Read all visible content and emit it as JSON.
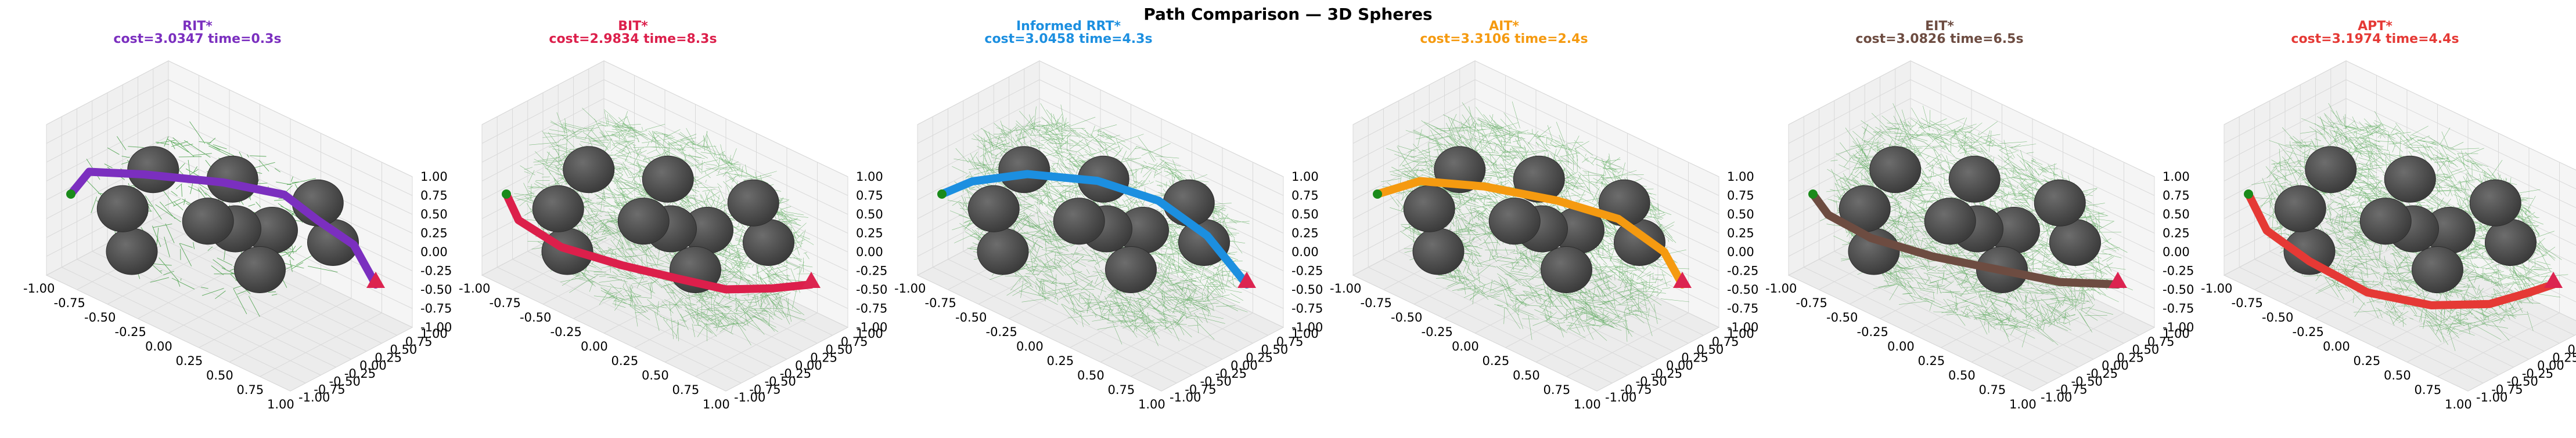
{
  "figure": {
    "suptitle": "Path Comparison — 3D Spheres"
  },
  "colors": {
    "tree": "#1a8a1a",
    "sphere_dark": "#3c3c3c",
    "sphere_light": "#6d6d6d",
    "goal": "#dc2450",
    "pane_fill": "#f2f2f2",
    "grid": "#d9d9d9"
  },
  "chart_data": [
    {
      "type": "line",
      "title": "RIT*",
      "subtitle": "cost=3.0347  time=0.3s",
      "color": "#7b2fbf",
      "cost": 3.0347,
      "time_s": 0.3,
      "tree_density": "sparse",
      "axis_ticks": [
        "-1.00",
        "-0.75",
        "-0.50",
        "-0.25",
        "0.00",
        "0.25",
        "0.50",
        "0.75",
        "1.00"
      ],
      "xlim": [
        -1,
        1
      ],
      "ylim": [
        -1,
        1
      ],
      "zlim": [
        -1,
        1
      ],
      "path_xyz": [
        [
          -0.85,
          -0.9,
          0.15
        ],
        [
          -0.8,
          -0.7,
          0.4
        ],
        [
          -0.45,
          -0.5,
          0.55
        ],
        [
          0.0,
          -0.1,
          0.62
        ],
        [
          0.35,
          0.2,
          0.6
        ],
        [
          0.55,
          0.35,
          0.35
        ],
        [
          0.72,
          0.6,
          0.05
        ],
        [
          0.8,
          0.8,
          -0.5
        ]
      ]
    },
    {
      "type": "line",
      "title": "BIT*",
      "subtitle": "cost=2.9834  time=8.3s",
      "color": "#dc1f4b",
      "cost": 2.9834,
      "time_s": 8.3,
      "tree_density": "dense",
      "axis_ticks": [
        "-1.00",
        "-0.75",
        "-0.50",
        "-0.25",
        "0.00",
        "0.25",
        "0.50",
        "0.75",
        "1.00"
      ],
      "xlim": [
        -1,
        1
      ],
      "ylim": [
        -1,
        1
      ],
      "zlim": [
        -1,
        1
      ],
      "path_xyz": [
        [
          -0.85,
          -0.9,
          0.15
        ],
        [
          -0.8,
          -0.8,
          -0.2
        ],
        [
          -0.55,
          -0.6,
          -0.45
        ],
        [
          -0.2,
          -0.3,
          -0.55
        ],
        [
          0.1,
          0.0,
          -0.62
        ],
        [
          0.35,
          0.3,
          -0.7
        ],
        [
          0.6,
          0.55,
          -0.6
        ],
        [
          0.8,
          0.8,
          -0.5
        ]
      ]
    },
    {
      "type": "line",
      "title": "Informed RRT*",
      "subtitle": "cost=3.0458  time=4.3s",
      "color": "#1c8fe0",
      "cost": 3.0458,
      "time_s": 4.3,
      "tree_density": "dense",
      "axis_ticks": [
        "-1.00",
        "-0.75",
        "-0.50",
        "-0.25",
        "0.00",
        "0.25",
        "0.50",
        "0.75",
        "1.00"
      ],
      "xlim": [
        -1,
        1
      ],
      "ylim": [
        -1,
        1
      ],
      "zlim": [
        -1,
        1
      ],
      "path_xyz": [
        [
          -0.85,
          -0.9,
          0.15
        ],
        [
          -0.7,
          -0.7,
          0.35
        ],
        [
          -0.4,
          -0.4,
          0.55
        ],
        [
          0.0,
          -0.05,
          0.62
        ],
        [
          0.35,
          0.25,
          0.5
        ],
        [
          0.6,
          0.55,
          0.1
        ],
        [
          0.8,
          0.8,
          -0.5
        ]
      ]
    },
    {
      "type": "line",
      "title": "AIT*",
      "subtitle": "cost=3.3106  time=2.4s",
      "color": "#f59a10",
      "cost": 3.3106,
      "time_s": 2.4,
      "tree_density": "dense",
      "axis_ticks": [
        "-1.00",
        "-0.75",
        "-0.50",
        "-0.25",
        "0.00",
        "0.25",
        "0.50",
        "0.75",
        "1.00"
      ],
      "xlim": [
        -1,
        1
      ],
      "ylim": [
        -1,
        1
      ],
      "zlim": [
        -1,
        1
      ],
      "path_xyz": [
        [
          -0.85,
          -0.9,
          0.15
        ],
        [
          -0.65,
          -0.6,
          0.35
        ],
        [
          -0.3,
          -0.25,
          0.4
        ],
        [
          0.1,
          0.15,
          0.35
        ],
        [
          0.45,
          0.45,
          0.25
        ],
        [
          0.7,
          0.7,
          -0.1
        ],
        [
          0.8,
          0.8,
          -0.5
        ]
      ]
    },
    {
      "type": "line",
      "title": "EIT*",
      "subtitle": "cost=3.0826  time=6.5s",
      "color": "#6d4c41",
      "cost": 3.0826,
      "time_s": 6.5,
      "tree_density": "dense",
      "axis_ticks": [
        "-1.00",
        "-0.75",
        "-0.50",
        "-0.25",
        "0.00",
        "0.25",
        "0.50",
        "0.75",
        "1.00"
      ],
      "xlim": [
        -1,
        1
      ],
      "ylim": [
        -1,
        1
      ],
      "zlim": [
        -1,
        1
      ],
      "path_xyz": [
        [
          -0.85,
          -0.9,
          0.15
        ],
        [
          -0.8,
          -0.75,
          -0.15
        ],
        [
          -0.55,
          -0.55,
          -0.35
        ],
        [
          -0.2,
          -0.25,
          -0.45
        ],
        [
          0.15,
          0.1,
          -0.5
        ],
        [
          0.5,
          0.45,
          -0.55
        ],
        [
          0.8,
          0.8,
          -0.5
        ]
      ]
    },
    {
      "type": "line",
      "title": "APT*",
      "subtitle": "cost=3.1974  time=4.4s",
      "color": "#e53935",
      "cost": 3.1974,
      "time_s": 4.4,
      "tree_density": "dense",
      "axis_ticks": [
        "-1.00",
        "-0.75",
        "-0.50",
        "-0.25",
        "0.00",
        "0.25",
        "0.50",
        "0.75",
        "1.00"
      ],
      "xlim": [
        -1,
        1
      ],
      "ylim": [
        -1,
        1
      ],
      "zlim": [
        -1,
        1
      ],
      "path_xyz": [
        [
          -0.85,
          -0.9,
          0.15
        ],
        [
          -0.75,
          -0.8,
          -0.3
        ],
        [
          -0.5,
          -0.6,
          -0.6
        ],
        [
          -0.15,
          -0.35,
          -0.85
        ],
        [
          0.2,
          0.0,
          -0.9
        ],
        [
          0.5,
          0.35,
          -0.8
        ],
        [
          0.7,
          0.6,
          -0.6
        ],
        [
          0.8,
          0.8,
          -0.5
        ]
      ]
    }
  ],
  "obstacles": [
    [
      -0.45,
      -0.35,
      0.55
    ],
    [
      0.0,
      0.05,
      0.6
    ],
    [
      0.5,
      0.45,
      0.5
    ],
    [
      -0.6,
      -0.55,
      0.0
    ],
    [
      -0.1,
      -0.15,
      0.05
    ],
    [
      0.05,
      0.0,
      0.0
    ],
    [
      0.25,
      0.2,
      0.05
    ],
    [
      0.55,
      0.6,
      -0.05
    ],
    [
      -0.55,
      -0.5,
      -0.55
    ],
    [
      0.15,
      0.2,
      -0.55
    ]
  ]
}
